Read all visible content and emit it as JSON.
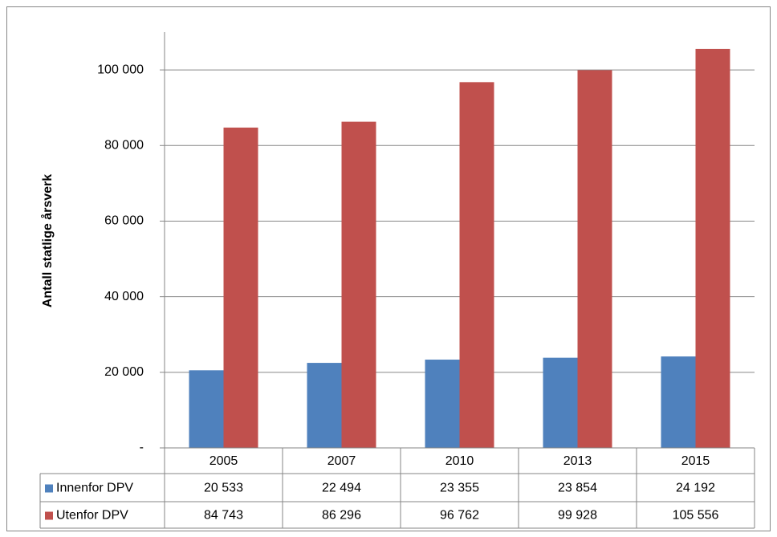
{
  "chart_data": {
    "type": "bar",
    "y_label": "Antall statlige årsverk",
    "categories": [
      "2005",
      "2007",
      "2010",
      "2013",
      "2015"
    ],
    "series": [
      {
        "name": "Innenfor DPV",
        "color": "#4f81bd",
        "values": [
          20533,
          22494,
          23355,
          23854,
          24192
        ],
        "value_labels": [
          "20 533",
          "22 494",
          "23 355",
          "23 854",
          "24 192"
        ]
      },
      {
        "name": "Utenfor DPV",
        "color": "#c0504d",
        "values": [
          84743,
          86296,
          96762,
          99928,
          105556
        ],
        "value_labels": [
          "84 743",
          "86 296",
          "96 762",
          "99 928",
          "105 556"
        ]
      }
    ],
    "ylim": [
      0,
      110000
    ],
    "yticks": [
      {
        "value": 0,
        "label": "-"
      },
      {
        "value": 20000,
        "label": "20 000"
      },
      {
        "value": 40000,
        "label": "40 000"
      },
      {
        "value": 60000,
        "label": "60 000"
      },
      {
        "value": 80000,
        "label": "80 000"
      },
      {
        "value": 100000,
        "label": "100 000"
      }
    ],
    "grid": true,
    "legend": "table"
  }
}
